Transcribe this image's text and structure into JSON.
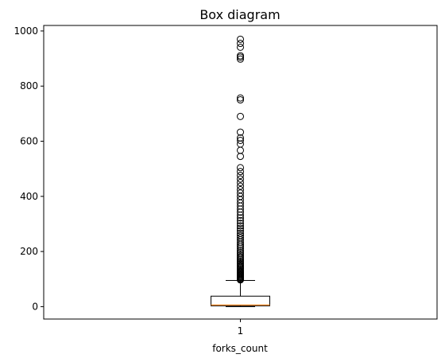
{
  "chart_data": {
    "type": "box",
    "title": "Box diagram",
    "xlabel": "forks_count",
    "ylabel": "",
    "categories": [
      "1"
    ],
    "ylim": [
      -45,
      1020
    ],
    "yticks": [
      0,
      200,
      400,
      600,
      800,
      1000
    ],
    "grid": false,
    "series": [
      {
        "category": "1",
        "whisker_low": 0,
        "q1": 3,
        "median": 6,
        "q3": 38,
        "whisker_high": 95,
        "outliers": [
          97,
          100,
          103,
          106,
          108,
          111,
          114,
          117,
          120,
          123,
          126,
          130,
          134,
          138,
          142,
          146,
          150,
          155,
          160,
          165,
          170,
          175,
          180,
          186,
          192,
          198,
          205,
          212,
          219,
          226,
          234,
          242,
          250,
          258,
          266,
          275,
          284,
          293,
          302,
          312,
          322,
          332,
          343,
          354,
          365,
          376,
          388,
          400,
          412,
          424,
          437,
          450,
          463,
          476,
          490,
          504,
          545,
          567,
          590,
          603,
          612,
          633,
          690,
          750,
          757,
          898,
          905,
          910,
          941,
          955,
          970
        ]
      }
    ],
    "colors": {
      "box": "#000000",
      "median": "#ff7f0e",
      "outlier_edge": "#000000"
    }
  }
}
